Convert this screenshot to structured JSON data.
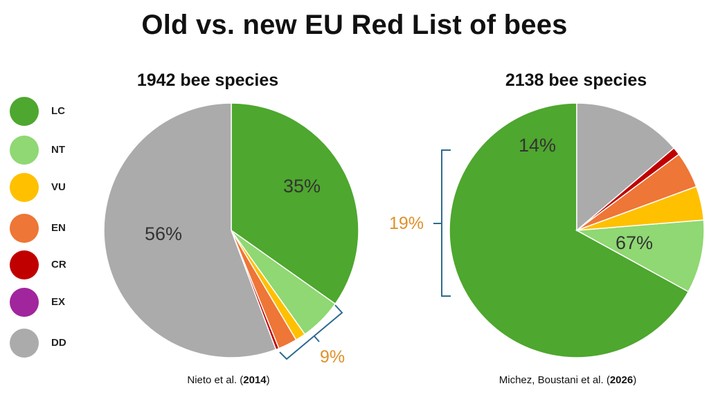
{
  "title": "Old vs. new EU Red List of bees",
  "legend": [
    {
      "code": "LC",
      "color": "#4ea72e"
    },
    {
      "code": "NT",
      "color": "#8fd873"
    },
    {
      "code": "VU",
      "color": "#ffc000"
    },
    {
      "code": "EN",
      "color": "#ee7636"
    },
    {
      "code": "CR",
      "color": "#c00000"
    },
    {
      "code": "EX",
      "color": "#a1259d"
    },
    {
      "code": "DD",
      "color": "#ababab"
    }
  ],
  "chart_data": [
    {
      "type": "pie",
      "title": "1942 bee species",
      "citation": "Nieto et al. (2014)",
      "citation_parts": [
        "Nieto et al. (",
        "2014",
        ")"
      ],
      "categories": [
        "LC",
        "NT",
        "VU",
        "EN",
        "CR",
        "EX",
        "DD"
      ],
      "values": [
        34.8,
        5.4,
        1.3,
        2.4,
        0.4,
        0.0,
        55.7
      ],
      "labels": {
        "LC": "35%",
        "DD": "56%"
      },
      "group_label": "9%",
      "group_categories": [
        "NT",
        "VU",
        "EN",
        "CR"
      ]
    },
    {
      "type": "pie",
      "title": "2138 bee species",
      "citation": "Michez, Boustani et al. (2026)",
      "citation_parts": [
        "Michez, Boustani et al. (",
        "2026",
        ")"
      ],
      "categories": [
        "LC",
        "NT",
        "VU",
        "EN",
        "CR",
        "EX",
        "DD"
      ],
      "values": [
        67.0,
        9.3,
        4.3,
        4.6,
        1.0,
        0.0,
        13.8
      ],
      "labels": {
        "LC": "67%",
        "DD": "14%"
      },
      "group_label": "19%",
      "group_categories": [
        "NT",
        "VU",
        "EN",
        "CR"
      ]
    }
  ]
}
